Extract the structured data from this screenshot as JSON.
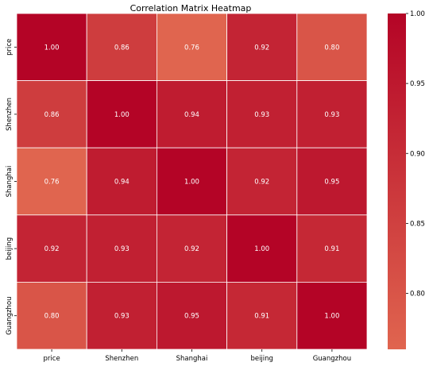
{
  "chart_data": {
    "type": "heatmap",
    "title": "Correlation Matrix Heatmap",
    "xlabel": "",
    "ylabel": "",
    "x_categories": [
      "price",
      "Shenzhen",
      "Shanghai",
      "beijing",
      "Guangzhou"
    ],
    "y_categories": [
      "price",
      "Shenzhen",
      "Shanghai",
      "beijing",
      "Guangzhou"
    ],
    "values": [
      [
        1.0,
        0.86,
        0.76,
        0.92,
        0.8
      ],
      [
        0.86,
        1.0,
        0.94,
        0.93,
        0.93
      ],
      [
        0.76,
        0.94,
        1.0,
        0.92,
        0.95
      ],
      [
        0.92,
        0.93,
        0.92,
        1.0,
        0.91
      ],
      [
        0.8,
        0.93,
        0.95,
        0.91,
        1.0
      ]
    ],
    "annotations": [
      [
        "1.00",
        "0.86",
        "0.76",
        "0.92",
        "0.80"
      ],
      [
        "0.86",
        "1.00",
        "0.94",
        "0.93",
        "0.93"
      ],
      [
        "0.76",
        "0.94",
        "1.00",
        "0.92",
        "0.95"
      ],
      [
        "0.92",
        "0.93",
        "0.92",
        "1.00",
        "0.91"
      ],
      [
        "0.80",
        "0.93",
        "0.95",
        "0.91",
        "1.00"
      ]
    ],
    "colorbar": {
      "range": [
        0.76,
        1.0
      ],
      "ticks": [
        "0.80",
        "0.85",
        "0.90",
        "0.95",
        "1.00"
      ],
      "tick_values": [
        0.8,
        0.85,
        0.9,
        0.95,
        1.0
      ]
    },
    "colormap": {
      "low": "#e0654f",
      "high": "#b40426"
    },
    "cell_border_color": "#ffffff",
    "annotation_color": "#ffffff",
    "legend": "colorbar-right",
    "grid": false
  }
}
